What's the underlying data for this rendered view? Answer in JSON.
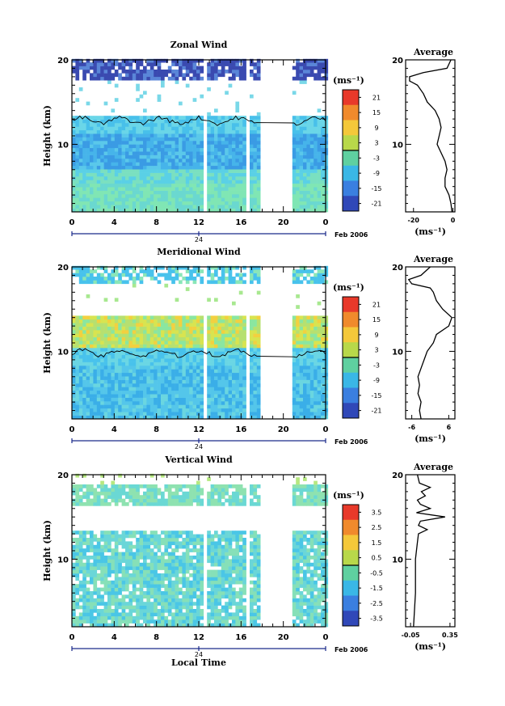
{
  "figure": {
    "date_label": "Feb 2006",
    "xlabel": "Local Time",
    "day_label": "24"
  },
  "chart_data": [
    {
      "type": "heatmap",
      "title": "Zonal Wind",
      "xlabel": "Local Time",
      "ylabel": "Height (km)",
      "xlim": [
        0,
        24
      ],
      "ylim": [
        2,
        20
      ],
      "x_ticks": [
        "0",
        "4",
        "8",
        "12",
        "16",
        "20",
        "0"
      ],
      "y_ticks": [
        "10",
        "20"
      ],
      "colorbar": {
        "unit": "(ms⁻¹)",
        "range": [
          -24,
          24
        ],
        "tick_labels": [
          "21",
          "15",
          "9",
          "3",
          "-3",
          "-9",
          "-15",
          "-21"
        ]
      },
      "data_gaps_hours": [
        [
          12.3,
          12.6
        ],
        [
          16.3,
          16.6
        ],
        [
          17.6,
          20.8
        ]
      ],
      "profile": {
        "title": "Average",
        "xlabel": "(ms⁻¹)",
        "xlim": [
          -24,
          1
        ],
        "x_ticks": [
          "-20",
          "0"
        ],
        "y_ticks": [
          "10",
          "20"
        ],
        "heights_km": [
          2,
          3,
          4,
          5,
          6,
          7,
          8,
          9,
          10,
          11,
          12,
          13,
          14,
          15,
          16,
          17,
          17.5,
          18,
          18.5,
          19,
          20
        ],
        "values": [
          -0.5,
          -1,
          -2,
          -4,
          -4,
          -3,
          -4,
          -6,
          -8,
          -7,
          -6,
          -7,
          -9,
          -13,
          -15,
          -18,
          -22,
          -22,
          -15,
          -3,
          -1
        ]
      }
    },
    {
      "type": "heatmap",
      "title": "Meridional Wind",
      "xlabel": "Local Time",
      "ylabel": "Height (km)",
      "xlim": [
        0,
        24
      ],
      "ylim": [
        2,
        20
      ],
      "x_ticks": [
        "0",
        "4",
        "8",
        "12",
        "16",
        "20",
        "0"
      ],
      "y_ticks": [
        "10",
        "20"
      ],
      "colorbar": {
        "unit": "(ms⁻¹)",
        "range": [
          -24,
          24
        ],
        "tick_labels": [
          "21",
          "15",
          "9",
          "3",
          "-3",
          "-9",
          "-15",
          "-21"
        ]
      },
      "data_gaps_hours": [
        [
          12.3,
          12.6
        ],
        [
          16.3,
          16.6
        ],
        [
          17.6,
          20.8
        ]
      ],
      "profile": {
        "title": "Average",
        "xlabel": "(ms⁻¹)",
        "xlim": [
          -8,
          8
        ],
        "x_ticks": [
          "-6",
          "6"
        ],
        "y_ticks": [
          "10",
          "20"
        ],
        "heights_km": [
          2,
          3,
          4,
          5,
          6,
          7,
          8,
          9,
          10,
          11,
          12,
          13,
          14,
          15,
          16,
          17,
          17.5,
          18,
          18.5,
          19,
          20
        ],
        "values": [
          -3,
          -3.5,
          -3,
          -4,
          -3.5,
          -4,
          -3,
          -2,
          -1,
          1,
          2,
          6,
          7,
          4,
          2,
          1,
          0,
          -6,
          -7,
          -3,
          0
        ]
      }
    },
    {
      "type": "heatmap",
      "title": "Vertical Wind",
      "xlabel": "Local Time",
      "ylabel": "Height (km)",
      "xlim": [
        0,
        24
      ],
      "ylim": [
        2,
        20
      ],
      "x_ticks": [
        "0",
        "4",
        "8",
        "12",
        "16",
        "20",
        "0"
      ],
      "y_ticks": [
        "10",
        "20"
      ],
      "colorbar": {
        "unit": "(ms⁻¹)",
        "range": [
          -4,
          4
        ],
        "tick_labels": [
          "3.5",
          "2.5",
          "1.5",
          "0.5",
          "-0.5",
          "-1.5",
          "-2.5",
          "-3.5"
        ]
      },
      "data_gaps_hours": [
        [
          12.3,
          12.6
        ],
        [
          16.3,
          16.6
        ],
        [
          17.6,
          20.8
        ]
      ],
      "profile": {
        "title": "Average",
        "xlabel": "(ms⁻¹)",
        "xlim": [
          -0.1,
          0.4
        ],
        "x_ticks": [
          "-0.05",
          "0.35"
        ],
        "y_ticks": [
          "10",
          "20"
        ],
        "heights_km": [
          2,
          4,
          6,
          8,
          10,
          11,
          12,
          13,
          13.5,
          14,
          14.5,
          15,
          15.5,
          16,
          16.5,
          17,
          17.5,
          18,
          18.5,
          19,
          20
        ],
        "values": [
          -0.02,
          -0.01,
          0.0,
          0.0,
          0.0,
          0.01,
          0.02,
          0.03,
          0.12,
          0.03,
          0.05,
          0.3,
          0.01,
          0.15,
          0.05,
          0.02,
          0.1,
          0.06,
          0.15,
          0.04,
          0.02
        ]
      }
    }
  ]
}
